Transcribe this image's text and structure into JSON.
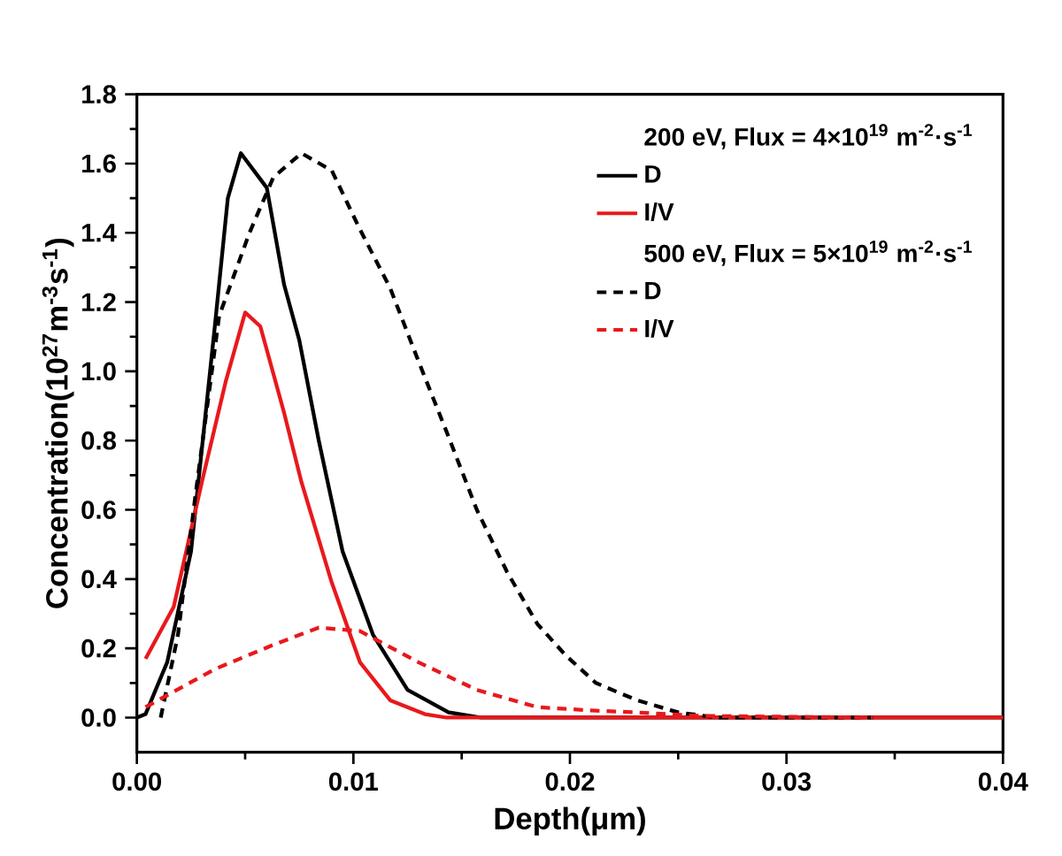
{
  "chart_data": {
    "type": "line",
    "xlabel": "Depth(μm)",
    "ylabel": "Concentration(10$^{27}$m$^{-3}$s$^{-1}$)",
    "xlim": [
      0,
      0.04
    ],
    "ylim": [
      -0.1,
      1.8
    ],
    "xticks": [
      {
        "value": 0,
        "label": "0.00"
      },
      {
        "value": 0.01,
        "label": "0.01"
      },
      {
        "value": 0.02,
        "label": "0.02"
      },
      {
        "value": 0.03,
        "label": "0.03"
      },
      {
        "value": 0.04,
        "label": "0.04"
      }
    ],
    "yticks": [
      {
        "value": 0,
        "label": "0.0"
      },
      {
        "value": 0.2,
        "label": "0.2"
      },
      {
        "value": 0.4,
        "label": "0.4"
      },
      {
        "value": 0.6,
        "label": "0.6"
      },
      {
        "value": 0.8,
        "label": "0.8"
      },
      {
        "value": 1,
        "label": "1.0"
      },
      {
        "value": 1.2,
        "label": "1.2"
      },
      {
        "value": 1.4,
        "label": "1.4"
      },
      {
        "value": 1.6,
        "label": "1.6"
      },
      {
        "value": 1.8,
        "label": "1.8"
      }
    ],
    "annotations": [
      "200 eV, Flux = 4×10$^{19}$ m$^{-2}$·s$^{-1}$",
      "500 eV, Flux = 5×10$^{19}$ m$^{-2}$·s$^{-1}$"
    ],
    "legend": "top right",
    "grid": false,
    "series": [
      {
        "name": "D",
        "color": "#000000",
        "line_style": "solid",
        "x": [
          0,
          0.0004,
          0.0014,
          0.0025,
          0.0036,
          0.0042,
          0.0048,
          0.006,
          0.0068,
          0.0075,
          0.0084,
          0.0095,
          0.0109,
          0.0125,
          0.0144,
          0.0159,
          0.04
        ],
        "values": [
          0,
          0.01,
          0.16,
          0.48,
          1.13,
          1.5,
          1.63,
          1.53,
          1.25,
          1.09,
          0.8,
          0.48,
          0.24,
          0.08,
          0.015,
          0,
          0
        ]
      },
      {
        "name": "I/V",
        "color": "#e8191c",
        "line_style": "solid",
        "x": [
          0.0004,
          0.0017,
          0.003,
          0.0041,
          0.005,
          0.0057,
          0.0068,
          0.0076,
          0.009,
          0.0103,
          0.0117,
          0.0133,
          0.0143,
          0.04
        ],
        "values": [
          0.17,
          0.32,
          0.68,
          0.97,
          1.17,
          1.13,
          0.88,
          0.68,
          0.39,
          0.16,
          0.05,
          0.01,
          0,
          0
        ]
      },
      {
        "name": "D",
        "color": "#000000",
        "line_style": "dashed",
        "x": [
          0.0011,
          0.0019,
          0.0027,
          0.0038,
          0.0052,
          0.0063,
          0.0076,
          0.009,
          0.0103,
          0.0117,
          0.013,
          0.0144,
          0.0157,
          0.0171,
          0.0185,
          0.0198,
          0.0212,
          0.0231,
          0.025,
          0.0268,
          0.034
        ],
        "values": [
          0,
          0.24,
          0.64,
          1.16,
          1.4,
          1.56,
          1.63,
          1.58,
          1.41,
          1.24,
          1.03,
          0.81,
          0.6,
          0.42,
          0.27,
          0.18,
          0.1,
          0.05,
          0.015,
          0,
          0
        ]
      },
      {
        "name": "I/V",
        "color": "#e8191c",
        "line_style": "dashed",
        "x": [
          0.0004,
          0.0036,
          0.0063,
          0.0084,
          0.0103,
          0.013,
          0.0157,
          0.0185,
          0.0212,
          0.0231,
          0.026,
          0.034
        ],
        "values": [
          0.03,
          0.14,
          0.21,
          0.26,
          0.25,
          0.16,
          0.08,
          0.03,
          0.02,
          0.015,
          0.005,
          0
        ]
      }
    ]
  }
}
